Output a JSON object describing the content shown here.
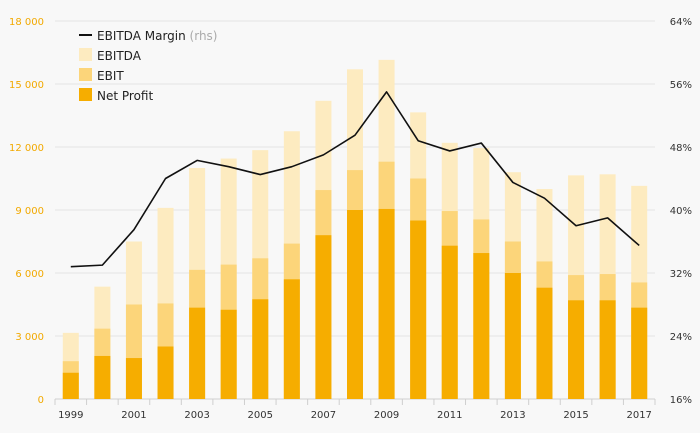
{
  "chart_data": {
    "type": "bar",
    "subtype": "overlapping-bars-with-line",
    "categories": [
      "1999",
      "2000",
      "2001",
      "2002",
      "2003",
      "2004",
      "2005",
      "2006",
      "2007",
      "2008",
      "2009",
      "2010",
      "2011",
      "2012",
      "2013",
      "2014",
      "2015",
      "2016",
      "2017"
    ],
    "series": [
      {
        "name": "EBITDA",
        "color": "#fdebc0",
        "values": [
          3150,
          5350,
          7500,
          9100,
          11000,
          11450,
          11850,
          12750,
          14200,
          15700,
          16150,
          13650,
          12200,
          11950,
          10800,
          10000,
          10650,
          10700,
          10150
        ]
      },
      {
        "name": "EBIT",
        "color": "#fcd57a",
        "values": [
          1800,
          3350,
          4500,
          4550,
          6150,
          6400,
          6700,
          7400,
          9950,
          10900,
          11300,
          10500,
          8950,
          8550,
          7500,
          6550,
          5900,
          5950,
          5550
        ]
      },
      {
        "name": "Net Profit",
        "color": "#f6ad00",
        "values": [
          1250,
          2050,
          1950,
          2500,
          4350,
          4250,
          4750,
          5700,
          7800,
          9000,
          9050,
          8500,
          7300,
          6950,
          6000,
          5300,
          4700,
          4700,
          4350
        ]
      }
    ],
    "line_series": {
      "name": "EBITDA Margin",
      "suffix": "(rhs)",
      "color": "#111111",
      "values": [
        32.8,
        33.0,
        37.5,
        44.0,
        46.3,
        45.5,
        44.5,
        45.5,
        47.0,
        49.5,
        55.0,
        48.8,
        47.5,
        48.5,
        43.5,
        41.5,
        38.0,
        39.0,
        35.5
      ]
    },
    "left_axis": {
      "ylim": [
        0,
        18000
      ],
      "ticks": [
        "0",
        "3 000",
        "6 000",
        "9 000",
        "12 000",
        "15 000",
        "18 000"
      ],
      "color": "#f2a900"
    },
    "right_axis": {
      "ylim": [
        16,
        64
      ],
      "ticks": [
        "16%",
        "24%",
        "32%",
        "40%",
        "48%",
        "56%",
        "64%"
      ]
    },
    "x_tick_labels": [
      "1999",
      "2001",
      "2003",
      "2005",
      "2007",
      "2009",
      "2011",
      "2013",
      "2015",
      "2017"
    ],
    "grid": true,
    "legend": "top-left",
    "xlabel": "",
    "ylabel": "",
    "title": ""
  }
}
